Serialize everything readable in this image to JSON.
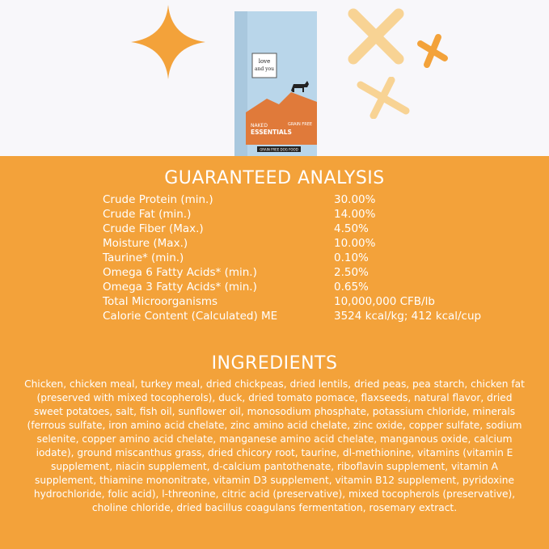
{
  "colors": {
    "band": "#f3a23a",
    "background": "#f8f7fa",
    "accent_light": "#f8d394"
  },
  "product": {
    "brand_logo": "I and love and you",
    "line": "NAKED ESSENTIALS",
    "flavor": "GRAIN FREE",
    "banner": "GRAIN FREE DOG FOOD"
  },
  "analysis": {
    "title": "GUARANTEED ANALYSIS",
    "rows": [
      {
        "label": "Crude Protein (min.)",
        "value": "30.00%"
      },
      {
        "label": "Crude Fat (min.)",
        "value": "14.00%"
      },
      {
        "label": "Crude Fiber (Max.)",
        "value": "4.50%"
      },
      {
        "label": "Moisture (Max.)",
        "value": "10.00%"
      },
      {
        "label": "Taurine* (min.)",
        "value": "0.10%"
      },
      {
        "label": "Omega 6 Fatty Acids* (min.)",
        "value": "2.50%"
      },
      {
        "label": "Omega 3 Fatty Acids* (min.)",
        "value": "0.65%"
      },
      {
        "label": "Total Microorganisms",
        "value": "10,000,000 CFB/lb"
      },
      {
        "label": "Calorie Content (Calculated) ME",
        "value": "3524 kcal/kg; 412 kcal/cup"
      }
    ]
  },
  "ingredients": {
    "title": "INGREDIENTS",
    "text": "Chicken, chicken meal, turkey meal, dried chickpeas, dried lentils, dried peas, pea starch, chicken fat (preserved with mixed tocopherols), duck, dried tomato pomace, flaxseeds, natural flavor, dried sweet potatoes, salt, fish oil, sunflower oil, monosodium phosphate, potassium chloride, minerals (ferrous sulfate, iron amino acid chelate, zinc amino acid chelate, zinc oxide, copper sulfate, sodium selenite, copper amino acid chelate, manganese amino acid chelate, manganous oxide, calcium iodate), ground miscanthus grass, dried chicory root, taurine, dl-methionine, vitamins (vitamin E supplement, niacin supplement, d-calcium pantothenate, riboflavin supplement, vitamin A supplement, thiamine mononitrate, vitamin D3 supplement, vitamin B12 supplement, pyridoxine hydrochloride, folic acid), l-threonine, citric acid (preservative), mixed tocopherols (preservative), choline chloride, dried bacillus coagulans fermentation, rosemary extract."
  }
}
